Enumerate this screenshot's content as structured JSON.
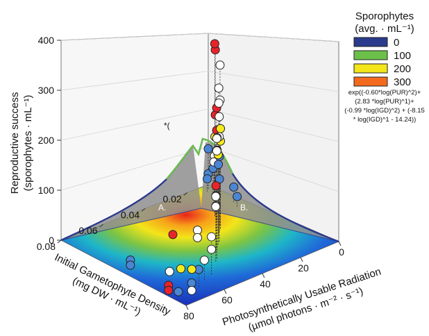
{
  "chart_data": {
    "type": "scatter",
    "title": "",
    "axes": {
      "z": {
        "label": [
          "Reproductive success",
          "(sporophytes · mL⁻¹)"
        ],
        "range": [
          0,
          400
        ],
        "ticks": [
          0,
          100,
          200,
          300,
          400
        ],
        "tick_labels": [
          "0",
          "100",
          "200",
          "300",
          "400"
        ]
      },
      "x": {
        "label": [
          "Initial Gametophyte Density",
          "(mg DW · mL⁻¹)"
        ],
        "range": [
          0.01,
          0.08
        ],
        "ticks": [
          0.02,
          0.04,
          0.06,
          0.08
        ],
        "tick_labels": [
          "0.02",
          "0.04",
          "0.06",
          "0.08"
        ]
      },
      "y": {
        "label": [
          "Photosynthetically Usable Radiation",
          "(µmol photons · m⁻² · s⁻¹)"
        ],
        "range": [
          0,
          80
        ],
        "ticks": [
          0,
          20,
          40,
          60,
          80
        ],
        "tick_labels": [
          "0",
          "20",
          "40",
          "60",
          "80"
        ]
      }
    },
    "legend": {
      "title_line1": "Sporophytes",
      "title_line2": "(avg. · mL⁻¹)",
      "placement": "top-right",
      "entries": [
        {
          "label": "0",
          "color": "#2a3a8c"
        },
        {
          "label": "100",
          "color": "#6cc04a"
        },
        {
          "label": "200",
          "color": "#f3e51a"
        },
        {
          "label": "300",
          "color": "#f36a1e"
        }
      ]
    },
    "formula": [
      "exp((-0.60*log(PUR)^2)+",
      "(2.83 *log(PUR)^1)+",
      "(-0.99 *log(IGD)^2) + (-8.15",
      "* log(IGD)^1 - 14.24))"
    ],
    "annotations": {
      "panel_a": "A.",
      "panel_b": "B.",
      "asterisk": "*("
    },
    "point_color_categories": {
      "white": "#ffffff",
      "blue": "#4a86d4",
      "yellow": "#f5ea1c",
      "red": "#e8242a"
    },
    "points": [
      {
        "igd": 0.01,
        "pur": 80,
        "z": 80,
        "c": "blue"
      },
      {
        "igd": 0.01,
        "pur": 80,
        "z": 30,
        "c": "blue"
      },
      {
        "igd": 0.012,
        "pur": 78,
        "z": 25,
        "c": "blue"
      },
      {
        "igd": 0.015,
        "pur": 70,
        "z": 60,
        "c": "blue"
      },
      {
        "igd": 0.018,
        "pur": 65,
        "z": 95,
        "c": "white"
      },
      {
        "igd": 0.02,
        "pur": 62,
        "z": 140,
        "c": "yellow"
      },
      {
        "igd": 0.022,
        "pur": 60,
        "z": 95,
        "c": "white"
      },
      {
        "igd": 0.025,
        "pur": 55,
        "z": 200,
        "c": "red"
      },
      {
        "igd": 0.025,
        "pur": 55,
        "z": 330,
        "c": "red"
      },
      {
        "igd": 0.026,
        "pur": 54,
        "z": 345,
        "c": "red"
      },
      {
        "igd": 0.028,
        "pur": 50,
        "z": 225,
        "c": "red"
      },
      {
        "igd": 0.028,
        "pur": 50,
        "z": 180,
        "c": "red"
      },
      {
        "igd": 0.03,
        "pur": 45,
        "z": 320,
        "c": "white"
      },
      {
        "igd": 0.03,
        "pur": 45,
        "z": 250,
        "c": "white"
      },
      {
        "igd": 0.032,
        "pur": 42,
        "z": 200,
        "c": "yellow"
      },
      {
        "igd": 0.032,
        "pur": 42,
        "z": 175,
        "c": "yellow"
      },
      {
        "igd": 0.034,
        "pur": 40,
        "z": 150,
        "c": "blue"
      },
      {
        "igd": 0.034,
        "pur": 40,
        "z": 105,
        "c": "blue"
      },
      {
        "igd": 0.036,
        "pur": 38,
        "z": 140,
        "c": "blue"
      },
      {
        "igd": 0.038,
        "pur": 35,
        "z": 300,
        "c": "white"
      },
      {
        "igd": 0.038,
        "pur": 35,
        "z": 270,
        "c": "white"
      },
      {
        "igd": 0.04,
        "pur": 32,
        "z": 250,
        "c": "white"
      },
      {
        "igd": 0.04,
        "pur": 32,
        "z": 210,
        "c": "white"
      },
      {
        "igd": 0.042,
        "pur": 30,
        "z": 180,
        "c": "yellow"
      },
      {
        "igd": 0.044,
        "pur": 28,
        "z": 220,
        "c": "blue"
      },
      {
        "igd": 0.044,
        "pur": 28,
        "z": 195,
        "c": "red"
      },
      {
        "igd": 0.046,
        "pur": 26,
        "z": 130,
        "c": "red"
      },
      {
        "igd": 0.046,
        "pur": 26,
        "z": 110,
        "c": "red"
      },
      {
        "igd": 0.046,
        "pur": 26,
        "z": 90,
        "c": "white"
      },
      {
        "igd": 0.05,
        "pur": 20,
        "z": 240,
        "c": "white"
      },
      {
        "igd": 0.05,
        "pur": 20,
        "z": 215,
        "c": "white"
      },
      {
        "igd": 0.052,
        "pur": 18,
        "z": 130,
        "c": "white"
      },
      {
        "igd": 0.052,
        "pur": 18,
        "z": 110,
        "c": "white"
      },
      {
        "igd": 0.06,
        "pur": 10,
        "z": 75,
        "c": "white"
      },
      {
        "igd": 0.06,
        "pur": 10,
        "z": 50,
        "c": "white"
      },
      {
        "igd": 0.065,
        "pur": 8,
        "z": 40,
        "c": "white"
      },
      {
        "igd": 0.07,
        "pur": 5,
        "z": 35,
        "c": "blue"
      },
      {
        "igd": 0.075,
        "pur": 3,
        "z": 20,
        "c": "blue"
      },
      {
        "igd": 0.075,
        "pur": 3,
        "z": 5,
        "c": "white"
      },
      {
        "igd": 0.045,
        "pur": 40,
        "z": 20,
        "c": "white"
      },
      {
        "igd": 0.045,
        "pur": 40,
        "z": 5,
        "c": "white"
      },
      {
        "igd": 0.05,
        "pur": 50,
        "z": 5,
        "c": "red"
      },
      {
        "igd": 0.075,
        "pur": 45,
        "z": 0,
        "c": "blue"
      },
      {
        "igd": 0.075,
        "pur": 45,
        "z": -10,
        "c": "blue"
      },
      {
        "igd": 0.068,
        "pur": 20,
        "z": 10,
        "c": "yellow"
      },
      {
        "igd": 0.064,
        "pur": 18,
        "z": 5,
        "c": "yellow"
      },
      {
        "igd": 0.07,
        "pur": 25,
        "z": 0,
        "c": "white"
      },
      {
        "igd": 0.08,
        "pur": 12,
        "z": 10,
        "c": "red"
      },
      {
        "igd": 0.08,
        "pur": 12,
        "z": 0,
        "c": "red"
      },
      {
        "igd": 0.078,
        "pur": 8,
        "z": 0,
        "c": "blue"
      },
      {
        "igd": 0.012,
        "pur": 60,
        "z": 30,
        "c": "blue"
      },
      {
        "igd": 0.014,
        "pur": 55,
        "z": 20,
        "c": "blue"
      }
    ]
  }
}
